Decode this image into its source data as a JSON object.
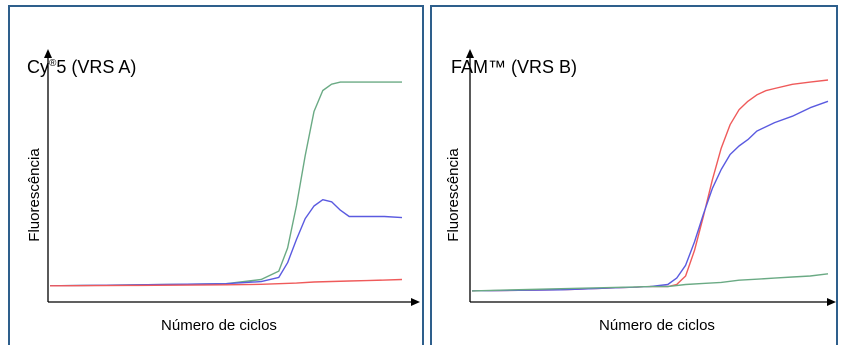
{
  "colors": {
    "frame": "#2e5f8c",
    "green": "#6aaa84",
    "blue": "#5a5ae0",
    "red": "#ef5a5a",
    "axis": "#000000"
  },
  "chart_data": [
    {
      "type": "line",
      "title_main": "Cy",
      "title_sup": "®",
      "title_rest": "5 (VRS A)",
      "xlabel": "Número de ciclos",
      "ylabel": "Fluorescência",
      "xlim": [
        0,
        40
      ],
      "ylim": [
        0,
        100
      ],
      "grid": false,
      "series": [
        {
          "color": "#6aaa84",
          "x": [
            0,
            10,
            20,
            24,
            26,
            27,
            28,
            29,
            30,
            31,
            32,
            33,
            34,
            36,
            38,
            40
          ],
          "y": [
            2,
            2.5,
            3,
            5,
            9,
            20,
            40,
            64,
            85,
            95,
            98,
            99,
            99,
            99,
            99,
            99
          ]
        },
        {
          "color": "#5a5ae0",
          "x": [
            0,
            10,
            20,
            24,
            26,
            27,
            28,
            29,
            30,
            31,
            32,
            33,
            34,
            35,
            36,
            38,
            40
          ],
          "y": [
            2,
            2.5,
            3,
            4,
            6,
            13,
            24,
            34,
            40,
            43,
            42,
            38,
            35,
            35,
            35,
            35,
            34.5
          ]
        },
        {
          "color": "#ef5a5a",
          "x": [
            0,
            10,
            20,
            24,
            26,
            28,
            30,
            34,
            36,
            40
          ],
          "y": [
            2,
            2.2,
            2.5,
            2.7,
            3,
            3.3,
            3.8,
            4.3,
            4.5,
            5
          ]
        }
      ]
    },
    {
      "type": "line",
      "title_main": "FAM™ (VRS B)",
      "title_sup": "",
      "title_rest": "",
      "xlabel": "Número de ciclos",
      "ylabel": "Fluorescência",
      "xlim": [
        0,
        40
      ],
      "ylim": [
        0,
        100
      ],
      "grid": false,
      "series": [
        {
          "color": "#ef5a5a",
          "x": [
            0,
            10,
            20,
            22,
            23,
            24,
            25,
            26,
            27,
            28,
            29,
            30,
            31,
            32,
            33,
            34,
            36,
            38,
            40
          ],
          "y": [
            1,
            1.5,
            3,
            3,
            4,
            8,
            20,
            36,
            53,
            68,
            79,
            86,
            90,
            93,
            95,
            96,
            98,
            99,
            100
          ]
        },
        {
          "color": "#5a5ae0",
          "x": [
            0,
            10,
            20,
            22,
            23,
            24,
            25,
            26,
            27,
            28,
            29,
            30,
            31,
            32,
            34,
            36,
            38,
            40
          ],
          "y": [
            1,
            1.5,
            3,
            4,
            7,
            13,
            24,
            37,
            49,
            58,
            65,
            69,
            72,
            76,
            80,
            83,
            87,
            90
          ]
        },
        {
          "color": "#6aaa84",
          "x": [
            0,
            10,
            20,
            22,
            24,
            26,
            28,
            30,
            32,
            34,
            36,
            38,
            40
          ],
          "y": [
            1,
            2,
            3,
            3,
            4,
            4.5,
            5,
            6,
            6.5,
            7,
            7.5,
            8,
            9
          ]
        }
      ]
    }
  ]
}
